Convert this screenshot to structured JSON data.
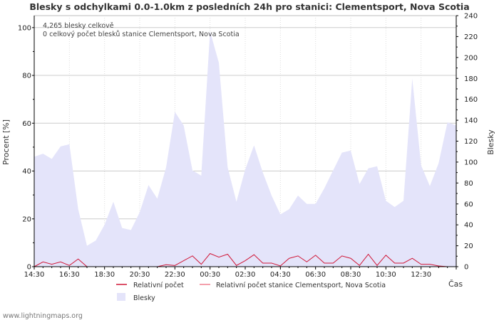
{
  "chart_data": {
    "type": "area",
    "title": "Blesky s odchylkami 0.0-1.0km z posledních 24h pro stanici: Clementsport, Nova Scotia",
    "xlabel": "Čas",
    "ylabel_left": "Procent   [%]",
    "ylabel_right": "Blesky",
    "ylim_left": [
      0,
      105
    ],
    "ylim_right": [
      0,
      240
    ],
    "yticks_left": [
      0,
      20,
      40,
      60,
      80,
      100
    ],
    "yticks_right": [
      0,
      20,
      40,
      60,
      80,
      100,
      120,
      140,
      160,
      180,
      200,
      220,
      240
    ],
    "x_count": 49,
    "x_tick_labels": [
      "14:30",
      "16:30",
      "18:30",
      "20:30",
      "22:30",
      "00:30",
      "02:30",
      "04:30",
      "06:30",
      "08:30",
      "10:30",
      "12:30"
    ],
    "x_tick_step": 4,
    "notes": [
      "4,265 blesky celkově",
      "0 celkový počet blesků stanice Clementsport, Nova Scotia"
    ],
    "legend": [
      {
        "label": "Relativní počet",
        "color": "#d01838"
      },
      {
        "label": "Relativní počet stanice Clementsport, Nova Scotia",
        "color": "#f08090"
      },
      {
        "label": "Blesky",
        "color": "#e4e4fa"
      }
    ],
    "series": [
      {
        "name": "Blesky",
        "axis": "right",
        "color": "#e4e4fa",
        "values": [
          105,
          108,
          103,
          115,
          117,
          55,
          20,
          25,
          40,
          62,
          37,
          35,
          52,
          78,
          65,
          95,
          148,
          135,
          92,
          87,
          225,
          195,
          95,
          62,
          93,
          116,
          90,
          68,
          50,
          55,
          68,
          60,
          60,
          75,
          92,
          109,
          111,
          79,
          94,
          96,
          63,
          57,
          63,
          180,
          97,
          77,
          99,
          138,
          135
        ]
      },
      {
        "name": "Relativní počet",
        "axis": "left",
        "color": "#d01838",
        "values": [
          0,
          2,
          1,
          2,
          0.5,
          3.2,
          0,
          0,
          0,
          0,
          0,
          0,
          0,
          0,
          0,
          0.8,
          0.5,
          2.5,
          4.5,
          1,
          5.5,
          4,
          5.2,
          0.5,
          2.5,
          5,
          1.5,
          1.5,
          0.3,
          3.5,
          4.5,
          2,
          4.8,
          1.5,
          1.5,
          4.5,
          3.5,
          0.5,
          5.2,
          0.5,
          4.8,
          1.5,
          1.5,
          3.5,
          1,
          1,
          0.3,
          0,
          0
        ]
      },
      {
        "name": "Relativní počet stanice Clementsport, Nova Scotia",
        "axis": "left",
        "color": "#f08090",
        "values": [
          0,
          0,
          0,
          0,
          0,
          0,
          0,
          0,
          0,
          0,
          0,
          0,
          0,
          0,
          0,
          0,
          0,
          0,
          0,
          0,
          0,
          0,
          0,
          0,
          0,
          0,
          0,
          0,
          0,
          0,
          0,
          0,
          0,
          0,
          0,
          0,
          0,
          0,
          0,
          0,
          0,
          0,
          0,
          0,
          0,
          0,
          0,
          0,
          0
        ]
      }
    ]
  },
  "footer": "www.lightningmaps.org"
}
